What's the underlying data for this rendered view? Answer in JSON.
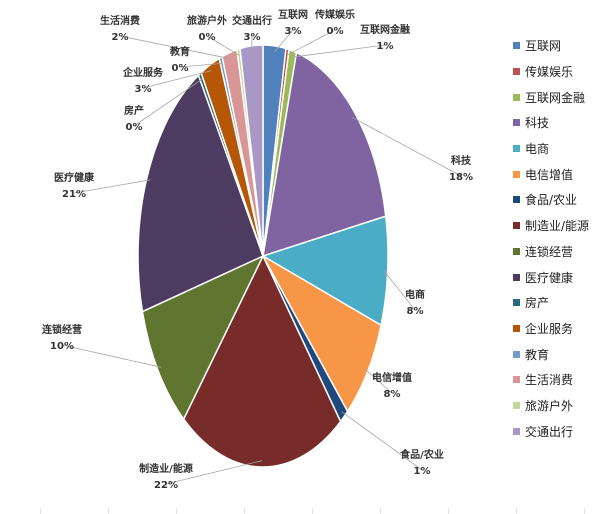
{
  "chart_data": {
    "type": "pie",
    "legend_position": "right",
    "slices": [
      {
        "name": "互联网",
        "percent_label": "3%",
        "value": 3,
        "color": "#4f81bd"
      },
      {
        "name": "传媒娱乐",
        "percent_label": "0%",
        "value": 0.4,
        "color": "#c0504d"
      },
      {
        "name": "互联网金融",
        "percent_label": "1%",
        "value": 1,
        "color": "#9bbb59"
      },
      {
        "name": "科技",
        "percent_label": "18%",
        "value": 18,
        "color": "#8064a2"
      },
      {
        "name": "电商",
        "percent_label": "8%",
        "value": 8.5,
        "color": "#4bacc6"
      },
      {
        "name": "电信增值",
        "percent_label": "8%",
        "value": 8,
        "color": "#f79646"
      },
      {
        "name": "食品/农业",
        "percent_label": "1%",
        "value": 1.2,
        "color": "#1f497d"
      },
      {
        "name": "制造业/能源",
        "percent_label": "22%",
        "value": 22,
        "color": "#772c2a"
      },
      {
        "name": "连锁经营",
        "percent_label": "10%",
        "value": 10,
        "color": "#5f7530"
      },
      {
        "name": "医疗健康",
        "percent_label": "21%",
        "value": 21,
        "color": "#4d3b62"
      },
      {
        "name": "房产",
        "percent_label": "0%",
        "value": 0.4,
        "color": "#276a7c"
      },
      {
        "name": "企业服务",
        "percent_label": "3%",
        "value": 2.6,
        "color": "#b65708"
      },
      {
        "name": "教育",
        "percent_label": "0%",
        "value": 0.4,
        "color": "#729aca"
      },
      {
        "name": "生活消费",
        "percent_label": "2%",
        "value": 2,
        "color": "#d99694"
      },
      {
        "name": "旅游户外",
        "percent_label": "0%",
        "value": 0.4,
        "color": "#c3d69b"
      },
      {
        "name": "交通出行",
        "percent_label": "3%",
        "value": 3,
        "color": "#a997c6"
      }
    ]
  }
}
